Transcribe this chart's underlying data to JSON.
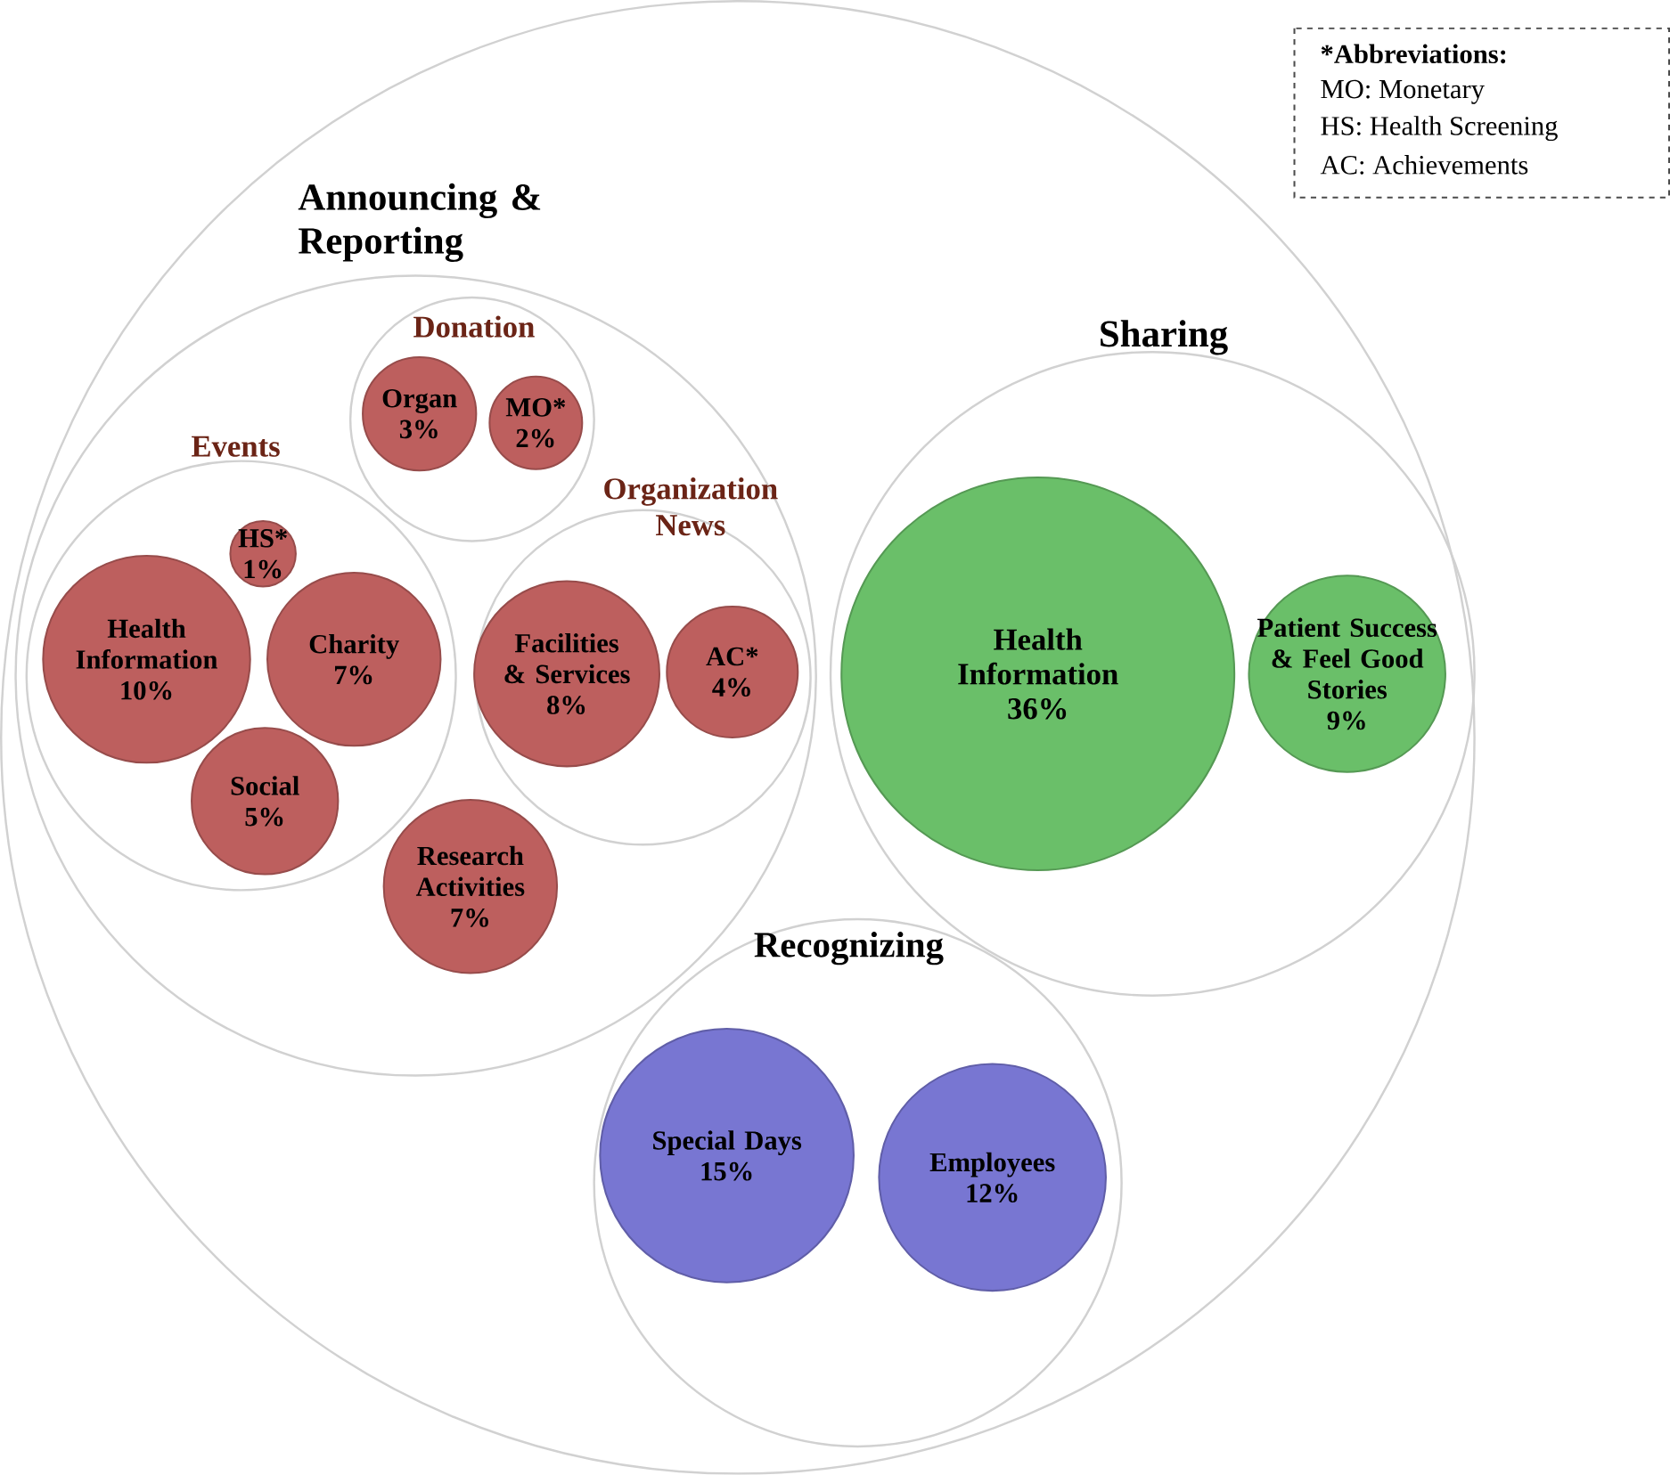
{
  "chart_data": {
    "type": "other",
    "categories": [
      "Organ",
      "MO*",
      "HS*",
      "Health Information",
      "Charity",
      "Social",
      "Facilities & Services",
      "AC*",
      "Research Activities",
      "Health Information",
      "Patient Success & Feel Good Stories",
      "Special Days",
      "Employees"
    ],
    "values": [
      3,
      2,
      1,
      10,
      7,
      5,
      8,
      4,
      7,
      36,
      9,
      15,
      12
    ],
    "value_labels": [
      "3%",
      "2%",
      "1%",
      "10%",
      "7%",
      "5%",
      "8%",
      "4%",
      "7%",
      "36%",
      "9%",
      "15%",
      "12%"
    ],
    "colors": [
      "#bd5f5e",
      "#bd5f5e",
      "#bd5f5e",
      "#bd5f5e",
      "#bd5f5e",
      "#bd5f5e",
      "#bd5f5e",
      "#bd5f5e",
      "#bd5f5e",
      "#6abf69",
      "#6abf69",
      "#7876d2",
      "#7876d2"
    ],
    "annotations": [
      "Announcing & Reporting",
      "Donation",
      "Events",
      "Organization News",
      "Sharing",
      "Recognizing",
      "*Abbreviations:",
      "MO: Monetary",
      "HS: Health Screening",
      "AC: Achievements"
    ]
  }
}
